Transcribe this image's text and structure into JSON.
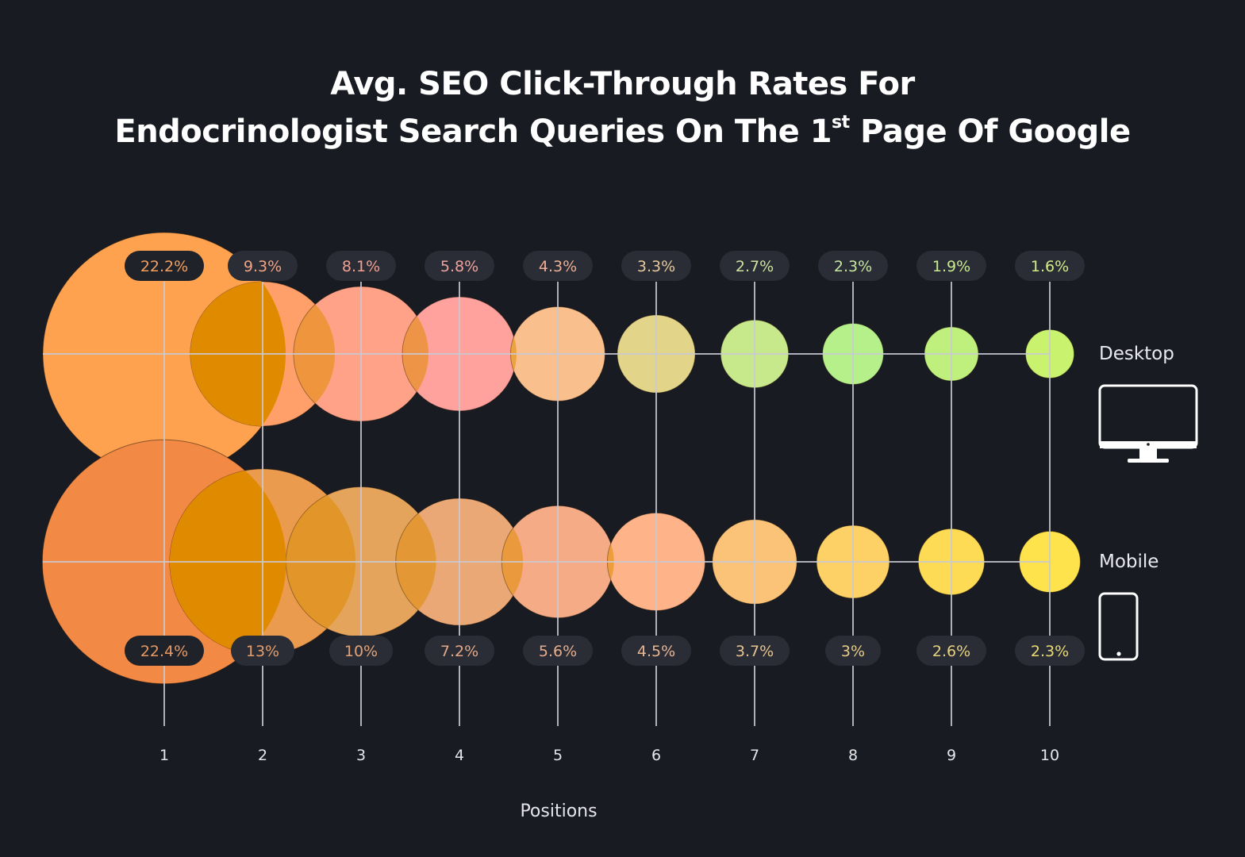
{
  "title": {
    "line1": "Avg. SEO Click-Through Rates For",
    "line2_pre": "Endocrinologist Search Queries On The 1",
    "line2_sup": "st",
    "line2_post": " Page Of Google"
  },
  "legend": {
    "desktop_label": "Desktop",
    "mobile_label": "Mobile",
    "desktop_icon": "desktop-monitor-icon",
    "mobile_icon": "mobile-phone-icon"
  },
  "colors": {
    "background": "#181b22",
    "pill_bg": "#2a2d36",
    "pill_bg_dark": "#22252d",
    "grid_line": "#c9c9d2",
    "overlap": "#e08a00"
  },
  "chart_data": {
    "type": "bubble",
    "title": "Avg. SEO Click-Through Rates For Endocrinologist Search Queries On The 1st Page Of Google",
    "xlabel": "Positions",
    "ylabel": "",
    "categories": [
      "1",
      "2",
      "3",
      "4",
      "5",
      "6",
      "7",
      "8",
      "9",
      "10"
    ],
    "series": [
      {
        "name": "Desktop",
        "values": [
          22.2,
          9.3,
          8.1,
          5.8,
          4.3,
          3.3,
          2.7,
          2.3,
          1.9,
          1.6
        ],
        "labels": [
          "22.2%",
          "9.3%",
          "8.1%",
          "5.8%",
          "4.3%",
          "3.3%",
          "2.7%",
          "2.3%",
          "1.9%",
          "1.6%"
        ],
        "bubble_colors": [
          "#ffa24f",
          "#ffa06a",
          "#ffa288",
          "#ffa19d",
          "#f9bf8c",
          "#e2d58a",
          "#c7e88b",
          "#b5f08a",
          "#bff07d",
          "#c9f26f"
        ],
        "label_colors": [
          "#f2a060",
          "#f2a381",
          "#f2a08f",
          "#f0a39e",
          "#eeae93",
          "#e6c99a",
          "#cfe2a1",
          "#c6e6a0",
          "#c8eb8d",
          "#d3ec86"
        ]
      },
      {
        "name": "Mobile",
        "values": [
          22.4,
          13,
          10,
          7.2,
          5.6,
          4.5,
          3.7,
          3,
          2.6,
          2.3
        ],
        "labels": [
          "22.4%",
          "13%",
          "10%",
          "7.2%",
          "5.6%",
          "4.5%",
          "3.7%",
          "3%",
          "2.6%",
          "2.3%"
        ],
        "bubble_colors": [
          "#f28a45",
          "#eb9b4e",
          "#e4a45c",
          "#e9a875",
          "#f5ab86",
          "#ffb388",
          "#fbc378",
          "#fdd165",
          "#fedb55",
          "#ffe34c"
        ],
        "label_colors": [
          "#e59863",
          "#e59d6b",
          "#e2a278",
          "#e3a887",
          "#e6ad8c",
          "#e8b593",
          "#e8c38f",
          "#e8cc85",
          "#e6d27d",
          "#e9da73"
        ]
      }
    ],
    "grid": true,
    "legend_position": "right"
  }
}
